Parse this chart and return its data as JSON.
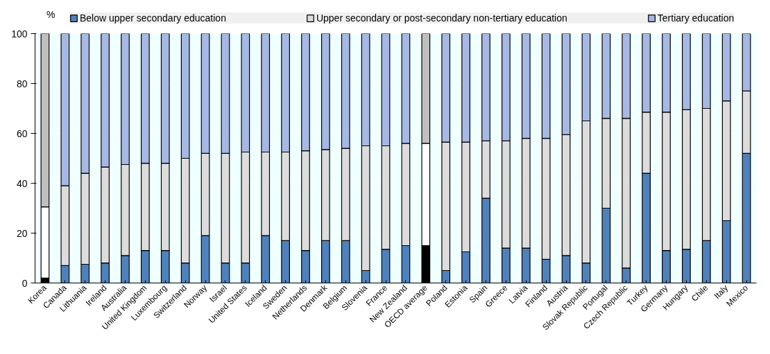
{
  "chart_data": {
    "type": "bar",
    "stacked": true,
    "ylabel": "%",
    "legend": "top",
    "grid": "y",
    "categories": [
      "Korea",
      "Canada",
      "Lithuania",
      "Ireland",
      "Australia",
      "United Kingdom",
      "Luxembourg",
      "Switzerland",
      "Norway",
      "Israel",
      "United States",
      "Iceland",
      "Sweden",
      "Netherlands",
      "Denmark",
      "Belgium",
      "Slovenia",
      "France",
      "New Zealand",
      "OECD average",
      "Poland",
      "Estonia",
      "Spain",
      "Greece",
      "Latvia",
      "Finland",
      "Austria",
      "Slovak Republic",
      "Portugal",
      "Czech Republic",
      "Turkey",
      "Germany",
      "Hungary",
      "Chile",
      "Italy",
      "Mexico"
    ],
    "ylim": [
      0,
      100
    ],
    "yticks": [
      0,
      20,
      40,
      60,
      80,
      100
    ],
    "series": [
      {
        "name": "Below upper secondary education",
        "color": "#4f81bd",
        "colors": [
          "#000000",
          "#4f81bd",
          "#4f81bd",
          "#4f81bd",
          "#4f81bd",
          "#4f81bd",
          "#4f81bd",
          "#4f81bd",
          "#4f81bd",
          "#4f81bd",
          "#4f81bd",
          "#4f81bd",
          "#4f81bd",
          "#4f81bd",
          "#4f81bd",
          "#4f81bd",
          "#4f81bd",
          "#4f81bd",
          "#4f81bd",
          "#000000",
          "#4f81bd",
          "#4f81bd",
          "#4f81bd",
          "#4f81bd",
          "#4f81bd",
          "#4f81bd",
          "#4f81bd",
          "#4f81bd",
          "#4f81bd",
          "#4f81bd",
          "#4f81bd",
          "#4f81bd",
          "#4f81bd",
          "#4f81bd",
          "#4f81bd",
          "#4f81bd"
        ],
        "values": [
          2,
          7,
          7.5,
          8,
          11,
          13,
          13,
          8,
          19,
          8,
          8,
          19,
          17,
          13,
          17,
          17,
          5,
          13.5,
          15,
          15,
          5,
          12.5,
          34,
          14,
          14,
          9.5,
          11,
          8,
          30,
          6,
          44,
          13,
          13.5,
          17,
          25,
          52
        ]
      },
      {
        "name": "Upper secondary or post-secondary non-tertiary education",
        "color": "#dcdcdc",
        "colors": [
          "#ffffff",
          "#dcdcdc",
          "#dcdcdc",
          "#dcdcdc",
          "#dcdcdc",
          "#dcdcdc",
          "#dcdcdc",
          "#dcdcdc",
          "#dcdcdc",
          "#dcdcdc",
          "#dcdcdc",
          "#dcdcdc",
          "#dcdcdc",
          "#dcdcdc",
          "#dcdcdc",
          "#dcdcdc",
          "#dcdcdc",
          "#dcdcdc",
          "#dcdcdc",
          "#ffffff",
          "#dcdcdc",
          "#dcdcdc",
          "#dcdcdc",
          "#dcdcdc",
          "#dcdcdc",
          "#dcdcdc",
          "#dcdcdc",
          "#dcdcdc",
          "#dcdcdc",
          "#dcdcdc",
          "#dcdcdc",
          "#dcdcdc",
          "#dcdcdc",
          "#dcdcdc",
          "#dcdcdc",
          "#dcdcdc"
        ],
        "values": [
          28.5,
          32,
          36.5,
          38.5,
          36.5,
          35,
          35,
          42,
          33,
          44,
          44.5,
          33.5,
          35.5,
          40,
          36.5,
          37,
          50,
          41.5,
          41,
          41,
          51.5,
          44,
          23,
          43,
          44,
          48.5,
          48.5,
          57,
          36,
          60,
          24.5,
          55.5,
          56,
          53,
          48,
          25
        ]
      },
      {
        "name": "Tertiary education",
        "color": "#a6b9e4",
        "colors": [
          "#bfbfbf",
          "#a6b9e4",
          "#a6b9e4",
          "#a6b9e4",
          "#a6b9e4",
          "#a6b9e4",
          "#a6b9e4",
          "#a6b9e4",
          "#a6b9e4",
          "#a6b9e4",
          "#a6b9e4",
          "#a6b9e4",
          "#a6b9e4",
          "#a6b9e4",
          "#a6b9e4",
          "#a6b9e4",
          "#a6b9e4",
          "#a6b9e4",
          "#a6b9e4",
          "#bfbfbf",
          "#a6b9e4",
          "#a6b9e4",
          "#a6b9e4",
          "#a6b9e4",
          "#a6b9e4",
          "#a6b9e4",
          "#a6b9e4",
          "#a6b9e4",
          "#a6b9e4",
          "#a6b9e4",
          "#a6b9e4",
          "#a6b9e4",
          "#a6b9e4",
          "#a6b9e4",
          "#a6b9e4",
          "#a6b9e4"
        ],
        "values": [
          69.5,
          61,
          56,
          53.5,
          52.5,
          52,
          52,
          50,
          48,
          48,
          47.5,
          47.5,
          47.5,
          47,
          46.5,
          46,
          45,
          45,
          44,
          44,
          43.5,
          43.5,
          43,
          43,
          42,
          42,
          40.5,
          35,
          34,
          34,
          31.5,
          31.5,
          30.5,
          30,
          27,
          23
        ]
      }
    ]
  }
}
